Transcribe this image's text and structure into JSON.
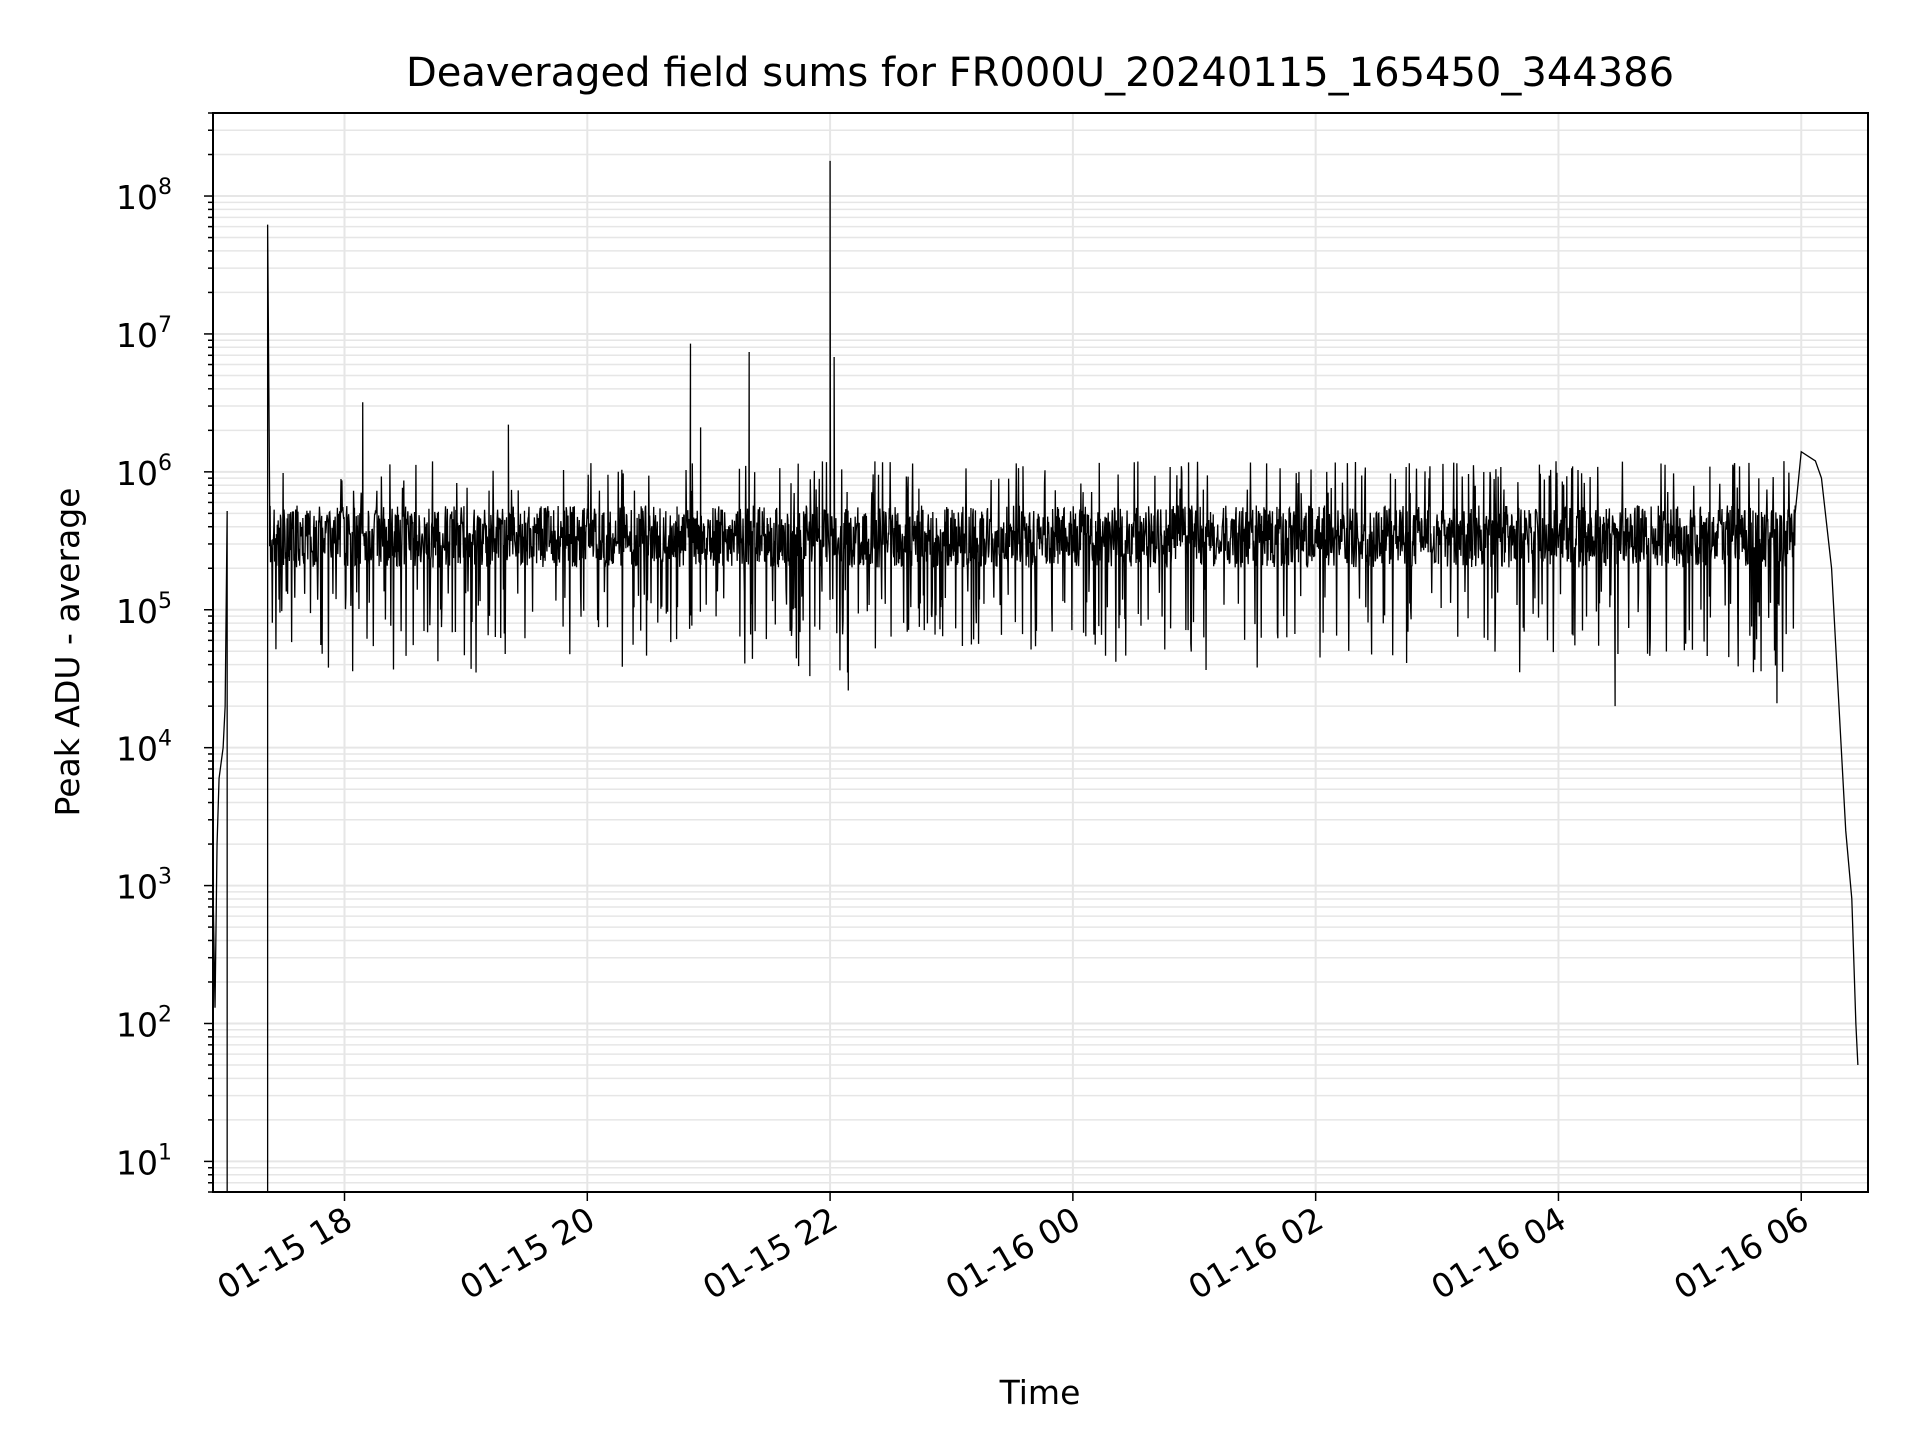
{
  "chart_data": {
    "type": "line",
    "title": "Deaveraged field sums for FR000U_20240115_165450_344386",
    "xlabel": "Time",
    "ylabel": "Peak ADU - average",
    "x_ticks": [
      "01-15 18",
      "01-15 20",
      "01-15 22",
      "01-16 00",
      "01-16 02",
      "01-16 04",
      "01-16 06"
    ],
    "x_tick_times": [
      "2024-01-15 18:00",
      "2024-01-15 20:00",
      "2024-01-15 22:00",
      "2024-01-16 00:00",
      "2024-01-16 02:00",
      "2024-01-16 04:00",
      "2024-01-16 06:00"
    ],
    "xlim": [
      "2024-01-15 16:55",
      "2024-01-16 06:33"
    ],
    "y_scale": "log",
    "ylim": [
      6,
      400000000
    ],
    "y_ticks": [
      {
        "base": "10",
        "exp": "1",
        "value": 10
      },
      {
        "base": "10",
        "exp": "2",
        "value": 100
      },
      {
        "base": "10",
        "exp": "3",
        "value": 1000
      },
      {
        "base": "10",
        "exp": "4",
        "value": 10000
      },
      {
        "base": "10",
        "exp": "5",
        "value": 100000
      },
      {
        "base": "10",
        "exp": "6",
        "value": 1000000
      },
      {
        "base": "10",
        "exp": "7",
        "value": 10000000
      },
      {
        "base": "10",
        "exp": "8",
        "value": 100000000
      }
    ],
    "grid": true,
    "line_color": "#000000",
    "grid_color": "#e6e6e6",
    "series": [
      {
        "values": [
          [
            "2024-01-15 16:55",
            1000
          ],
          [
            "2024-01-15 16:56",
            130
          ],
          [
            "2024-01-15 16:57",
            2000
          ],
          [
            "2024-01-15 16:58",
            6000
          ],
          [
            "2024-01-15 17:00",
            10000
          ],
          [
            "2024-01-15 17:01",
            20000
          ],
          [
            "2024-01-15 17:02",
            520000
          ],
          [
            "2024-01-15 17:02",
            6
          ],
          [
            "2024-01-15 17:22",
            6
          ],
          [
            "2024-01-15 17:22",
            62000000
          ],
          [
            "2024-01-15 17:23",
            600000
          ],
          [
            "2024-01-15 18:09",
            3200000
          ],
          [
            "2024-01-15 19:21",
            2200000
          ],
          [
            "2024-01-15 20:51",
            8500000
          ],
          [
            "2024-01-15 20:56",
            2100000
          ],
          [
            "2024-01-15 21:20",
            7400000
          ],
          [
            "2024-01-15 21:50",
            33000
          ],
          [
            "2024-01-15 22:00",
            180000000
          ],
          [
            "2024-01-15 22:02",
            6800000
          ],
          [
            "2024-01-15 22:09",
            26000
          ],
          [
            "2024-01-16 04:28",
            20000
          ],
          [
            "2024-01-16 05:48",
            21000
          ],
          [
            "2024-01-16 05:57",
            500000
          ],
          [
            "2024-01-16 06:00",
            1400000
          ],
          [
            "2024-01-16 06:07",
            1200000
          ],
          [
            "2024-01-16 06:10",
            900000
          ],
          [
            "2024-01-16 06:15",
            200000
          ],
          [
            "2024-01-16 06:18",
            30000
          ],
          [
            "2024-01-16 06:22",
            2500
          ],
          [
            "2024-01-16 06:25",
            800
          ],
          [
            "2024-01-16 06:27",
            100
          ],
          [
            "2024-01-16 06:28",
            50
          ]
        ]
      }
    ]
  }
}
